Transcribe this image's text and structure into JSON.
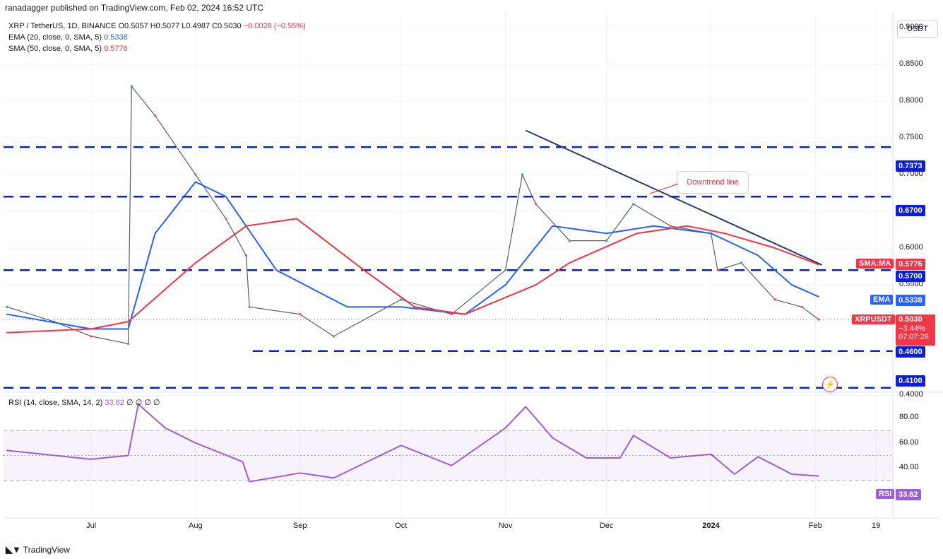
{
  "header": {
    "publisher": "ranadagger published on TradingView.com, Feb 02, 2024 16:52 UTC"
  },
  "legend": {
    "symbol": "XRP / TetherUS, 1D, BINANCE",
    "open": "O0.5057",
    "high": "H0.5077",
    "low": "L0.4987",
    "close": "C0.5030",
    "change": "−0.0028 (−0.55%)",
    "ema_label": "EMA (20, close, 0, SMA, 5)",
    "ema_value": "0.5338",
    "sma_label": "SMA (50, close, 0, SMA, 5)",
    "sma_value": "0.5776",
    "rsi_label": "RSI (14, close, SMA, 14, 2)",
    "rsi_value": "33.62",
    "rsi_extra": "∅ ∅ ∅ ∅"
  },
  "currency_button": "USDT",
  "annotation": {
    "text": "Downtrend line"
  },
  "price_tags": {
    "sma_name": "SMA:MA",
    "sma": "0.5776",
    "ema_name": "EMA",
    "ema": "0.5338",
    "sym_name": "XRPUSDT",
    "last": "0.5030",
    "last_change": "−3.44%",
    "countdown": "07:07:28",
    "lvl_7373": "0.7373",
    "lvl_6700": "0.6700",
    "lvl_5700": "0.5700",
    "lvl_4600": "0.4600",
    "lvl_4100": "0.4100",
    "rsi_name": "RSI",
    "rsi": "33.62"
  },
  "y_axis_labels": [
    "0.9000",
    "0.8500",
    "0.8000",
    "0.7500",
    "0.7000",
    "0.6500",
    "0.6000",
    "0.5500",
    "0.4000"
  ],
  "rsi_axis_labels": [
    "80.00",
    "60.00",
    "40.00"
  ],
  "x_axis_labels": [
    "Jul",
    "Aug",
    "Sep",
    "Oct",
    "Nov",
    "Dec",
    "2024",
    "Feb",
    "19"
  ],
  "footer": {
    "brand": "TradingView"
  },
  "colors": {
    "up": "#26a69a",
    "down": "#ef5350",
    "ema": "#2962ff",
    "sma": "#f23645",
    "level": "#0b1fd6",
    "trend": "#2a3d6e",
    "rsi": "#9c5fd6"
  },
  "chart_data": {
    "type": "line",
    "title": "XRP / TetherUS, 1D, BINANCE",
    "ylim": [
      0.405,
      0.92
    ],
    "horizontal_levels": [
      0.7373,
      0.67,
      0.57,
      0.46,
      0.41
    ],
    "downtrend_line": [
      {
        "x": "2023-11-07",
        "y": 0.76
      },
      {
        "x": "2024-02-03",
        "y": 0.577
      }
    ],
    "series": [
      {
        "name": "XRPUSDT",
        "x": [
          "2023-06-06",
          "2023-06-20",
          "2023-07-01",
          "2023-07-12",
          "2023-07-13",
          "2023-07-20",
          "2023-08-01",
          "2023-08-10",
          "2023-08-16",
          "2023-08-17",
          "2023-09-01",
          "2023-09-11",
          "2023-10-01",
          "2023-10-16",
          "2023-11-01",
          "2023-11-06",
          "2023-11-10",
          "2023-11-20",
          "2023-12-01",
          "2023-12-09",
          "2023-12-20",
          "2024-01-01",
          "2024-01-03",
          "2024-01-10",
          "2024-01-20",
          "2024-01-28",
          "2024-02-02"
        ],
        "values": [
          0.52,
          0.5,
          0.48,
          0.47,
          0.82,
          0.78,
          0.7,
          0.64,
          0.59,
          0.52,
          0.51,
          0.48,
          0.53,
          0.51,
          0.57,
          0.7,
          0.66,
          0.61,
          0.61,
          0.66,
          0.63,
          0.62,
          0.57,
          0.58,
          0.53,
          0.52,
          0.503
        ]
      },
      {
        "name": "EMA (20)",
        "x": [
          "2023-06-06",
          "2023-07-01",
          "2023-07-12",
          "2023-07-20",
          "2023-08-01",
          "2023-08-10",
          "2023-08-25",
          "2023-09-15",
          "2023-10-01",
          "2023-10-20",
          "2023-11-01",
          "2023-11-15",
          "2023-12-01",
          "2023-12-15",
          "2024-01-01",
          "2024-01-15",
          "2024-01-25",
          "2024-02-02"
        ],
        "values": [
          0.51,
          0.49,
          0.49,
          0.62,
          0.69,
          0.67,
          0.57,
          0.52,
          0.52,
          0.51,
          0.55,
          0.63,
          0.62,
          0.63,
          0.62,
          0.59,
          0.55,
          0.5338
        ]
      },
      {
        "name": "SMA (50)",
        "x": [
          "2023-06-06",
          "2023-07-01",
          "2023-07-12",
          "2023-08-01",
          "2023-08-16",
          "2023-08-31",
          "2023-09-20",
          "2023-10-05",
          "2023-10-20",
          "2023-11-10",
          "2023-11-20",
          "2023-12-10",
          "2023-12-25",
          "2024-01-05",
          "2024-01-20",
          "2024-02-02"
        ],
        "values": [
          0.485,
          0.49,
          0.5,
          0.58,
          0.63,
          0.64,
          0.57,
          0.52,
          0.51,
          0.55,
          0.58,
          0.62,
          0.63,
          0.62,
          0.6,
          0.5776
        ]
      },
      {
        "name": "RSI (14)",
        "x": [
          "2023-06-06",
          "2023-07-01",
          "2023-07-12",
          "2023-07-15",
          "2023-07-23",
          "2023-08-01",
          "2023-08-15",
          "2023-08-17",
          "2023-09-01",
          "2023-09-11",
          "2023-10-01",
          "2023-10-16",
          "2023-11-01",
          "2023-11-07",
          "2023-11-15",
          "2023-11-25",
          "2023-12-05",
          "2023-12-09",
          "2023-12-20",
          "2024-01-01",
          "2024-01-08",
          "2024-01-15",
          "2024-01-25",
          "2024-02-02"
        ],
        "values": [
          54,
          47,
          50,
          91,
          72,
          60,
          45,
          29,
          36,
          32,
          58,
          42,
          72,
          89,
          64,
          48,
          48,
          66,
          48,
          51,
          35,
          49,
          35,
          33.62
        ]
      }
    ],
    "rsi_ylim": [
      0,
      100
    ],
    "rsi_band": [
      30,
      70
    ]
  }
}
